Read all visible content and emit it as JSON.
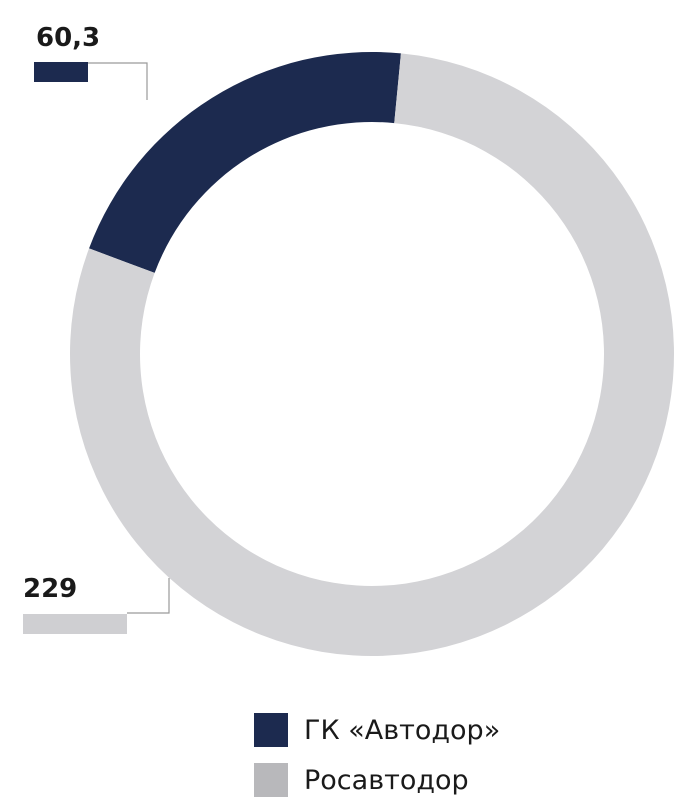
{
  "chart_data": {
    "type": "donut",
    "series": [
      {
        "name": "ГК «Автодор»",
        "value": 60.3,
        "label": "60,3",
        "color": "#1c2a4f"
      },
      {
        "name": "Росавтодор",
        "value": 229,
        "label": "229",
        "color": "#d3d3d6"
      }
    ],
    "legend_placement": "bottom",
    "label_bar_color_second": "#cfcfd2",
    "leader_line_color": "#9a9a9a"
  }
}
